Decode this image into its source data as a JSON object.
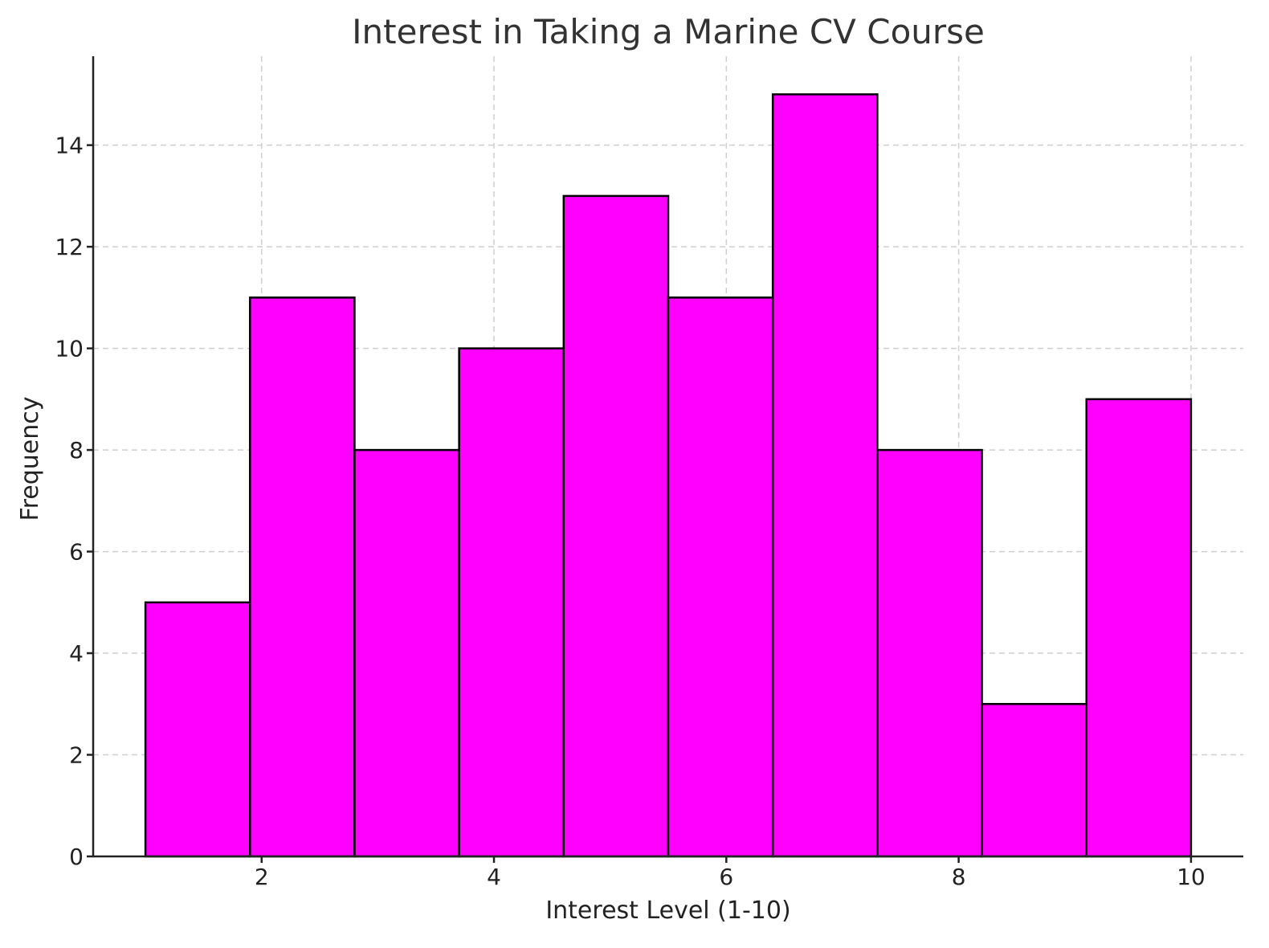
{
  "chart_data": {
    "type": "bar",
    "subtype": "histogram",
    "title": "Interest in Taking a Marine CV Course",
    "xlabel": "Interest Level (1-10)",
    "ylabel": "Frequency",
    "bin_edges": [
      1.0,
      1.9,
      2.8,
      3.7,
      4.6,
      5.5,
      6.4,
      7.3,
      8.2,
      9.1,
      10.0
    ],
    "values": [
      5,
      11,
      8,
      10,
      13,
      11,
      15,
      8,
      3,
      9
    ],
    "xlim": [
      0.55,
      10.45
    ],
    "ylim": [
      0,
      15.75
    ],
    "xticks": [
      2,
      4,
      6,
      8,
      10
    ],
    "yticks": [
      0,
      2,
      4,
      6,
      8,
      10,
      12,
      14
    ],
    "grid": true,
    "bar_color": "#ff00ff",
    "edge_color": "#000000"
  }
}
